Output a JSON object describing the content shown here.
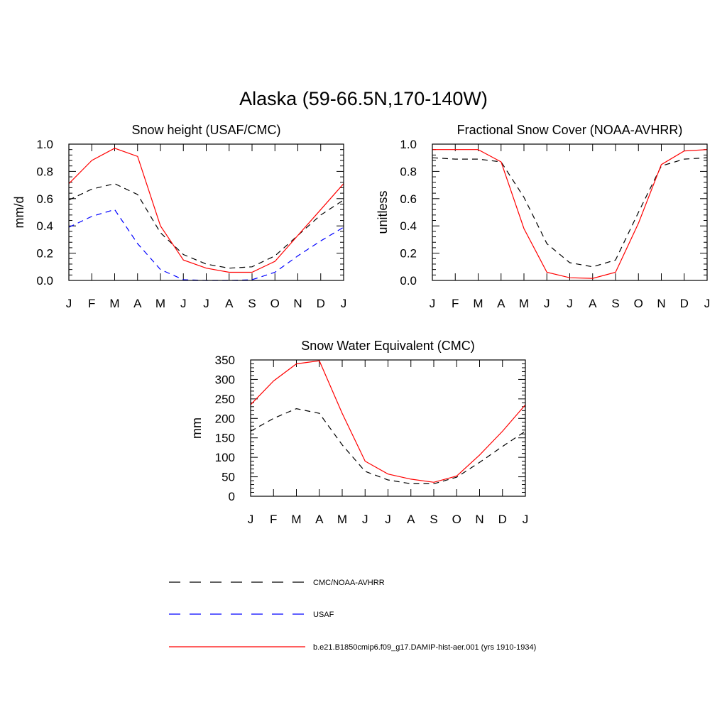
{
  "figure": {
    "title": "Alaska (59-66.5N,170-140W)"
  },
  "colors": {
    "obs": "#000000",
    "usaf": "#0000ff",
    "model": "#ff0000"
  },
  "legend": [
    {
      "label": "CMC/NOAA-AVHRR",
      "color": "#000000",
      "style": "dashed"
    },
    {
      "label": "USAF",
      "color": "#0000ff",
      "style": "dashed"
    },
    {
      "label": "b.e21.B1850cmip6.f09_g17.DAMIP-hist-aer.001 (yrs 1910-1934)",
      "color": "#ff0000",
      "style": "solid"
    }
  ],
  "chart_data": [
    {
      "type": "line",
      "title": "Snow height (USAF/CMC)",
      "xlabel": "",
      "ylabel": "mm/d",
      "categories": [
        "J",
        "F",
        "M",
        "A",
        "M",
        "J",
        "J",
        "A",
        "S",
        "O",
        "N",
        "D",
        "J"
      ],
      "ylim": [
        0,
        1.0
      ],
      "yticks": [
        0.0,
        0.2,
        0.4,
        0.6,
        0.8,
        1.0
      ],
      "ytick_labels": [
        "0.0",
        "0.2",
        "0.4",
        "0.6",
        "0.8",
        "1.0"
      ],
      "series": [
        {
          "name": "CMC/NOAA-AVHRR",
          "color": "#000000",
          "style": "dashed",
          "values": [
            0.59,
            0.67,
            0.71,
            0.63,
            0.35,
            0.19,
            0.12,
            0.09,
            0.1,
            0.18,
            0.33,
            0.48,
            0.59
          ]
        },
        {
          "name": "USAF",
          "color": "#0000ff",
          "style": "dashed",
          "values": [
            0.39,
            0.47,
            0.52,
            0.27,
            0.08,
            0.005,
            0.0,
            0.0,
            0.005,
            0.06,
            0.18,
            0.29,
            0.39
          ]
        },
        {
          "name": "b.e21.B1850cmip6.f09_g17.DAMIP-hist-aer.001 (yrs 1910-1934)",
          "color": "#ff0000",
          "style": "solid",
          "values": [
            0.71,
            0.88,
            0.97,
            0.91,
            0.4,
            0.15,
            0.09,
            0.06,
            0.06,
            0.14,
            0.33,
            0.52,
            0.71
          ]
        }
      ]
    },
    {
      "type": "line",
      "title": "Fractional Snow Cover (NOAA-AVHRR)",
      "xlabel": "",
      "ylabel": "unitless",
      "categories": [
        "J",
        "F",
        "M",
        "A",
        "M",
        "J",
        "J",
        "A",
        "S",
        "O",
        "N",
        "D",
        "J"
      ],
      "ylim": [
        0,
        1.0
      ],
      "yticks": [
        0.0,
        0.2,
        0.4,
        0.6,
        0.8,
        1.0
      ],
      "ytick_labels": [
        "0.0",
        "0.2",
        "0.4",
        "0.6",
        "0.8",
        "1.0"
      ],
      "series": [
        {
          "name": "CMC/NOAA-AVHRR",
          "color": "#000000",
          "style": "dashed",
          "values": [
            0.9,
            0.89,
            0.89,
            0.87,
            0.61,
            0.27,
            0.13,
            0.1,
            0.15,
            0.5,
            0.84,
            0.89,
            0.9
          ]
        },
        {
          "name": "b.e21.B1850cmip6.f09_g17.DAMIP-hist-aer.001 (yrs 1910-1934)",
          "color": "#ff0000",
          "style": "solid",
          "values": [
            0.96,
            0.96,
            0.96,
            0.87,
            0.38,
            0.06,
            0.02,
            0.015,
            0.06,
            0.42,
            0.85,
            0.95,
            0.96
          ]
        }
      ]
    },
    {
      "type": "line",
      "title": "Snow Water Equivalent (CMC)",
      "xlabel": "",
      "ylabel": "mm",
      "categories": [
        "J",
        "F",
        "M",
        "A",
        "M",
        "J",
        "J",
        "A",
        "S",
        "O",
        "N",
        "D",
        "J"
      ],
      "ylim": [
        0,
        350
      ],
      "yticks": [
        0,
        50,
        100,
        150,
        200,
        250,
        300,
        350
      ],
      "ytick_labels": [
        "0",
        "50",
        "100",
        "150",
        "200",
        "250",
        "300",
        "350"
      ],
      "series": [
        {
          "name": "CMC/NOAA-AVHRR",
          "color": "#000000",
          "style": "dashed",
          "values": [
            167,
            200,
            225,
            213,
            132,
            64,
            42,
            32,
            32,
            49,
            87,
            128,
            167
          ]
        },
        {
          "name": "b.e21.B1850cmip6.f09_g17.DAMIP-hist-aer.001 (yrs 1910-1934)",
          "color": "#ff0000",
          "style": "solid",
          "values": [
            235,
            296,
            340,
            348,
            213,
            90,
            57,
            44,
            36,
            52,
            106,
            167,
            235
          ]
        }
      ]
    }
  ]
}
